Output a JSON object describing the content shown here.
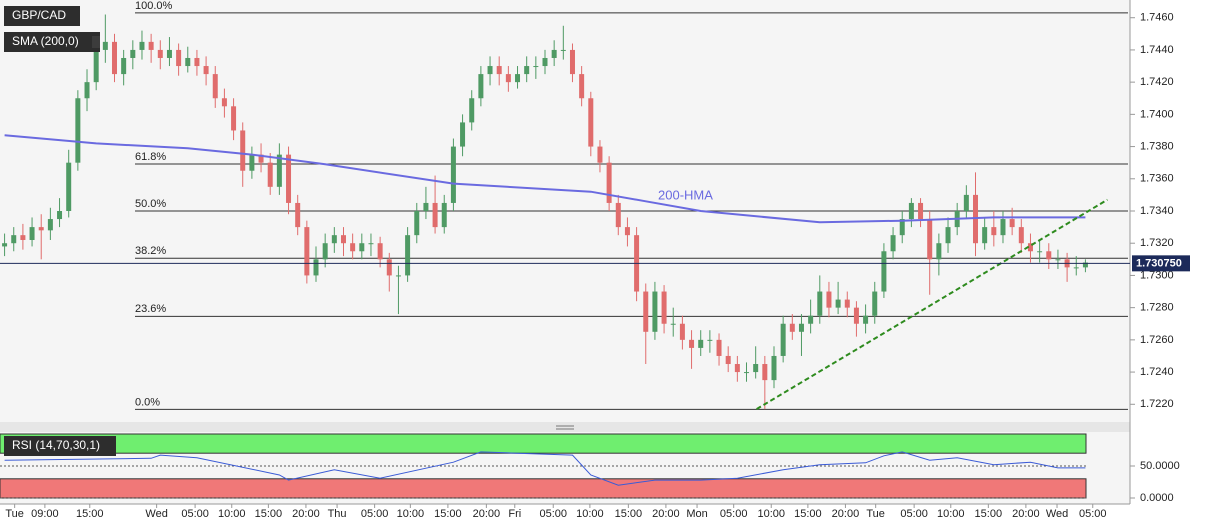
{
  "chart_data": {
    "type": "candlestick",
    "symbol": "GBP/CAD",
    "indicator_label": "SMA (200,0)",
    "annotation": "200-HMA",
    "up_color": "#4f9a64",
    "down_color": "#e06c6c",
    "xlim": [
      -0.5,
      118.5
    ],
    "ylim": [
      1.7209,
      1.7471
    ],
    "yticks": [
      {
        "value": 1.722,
        "label": "1.7220"
      },
      {
        "value": 1.724,
        "label": "1.7240"
      },
      {
        "value": 1.726,
        "label": "1.7260"
      },
      {
        "value": 1.728,
        "label": "1.7280"
      },
      {
        "value": 1.73,
        "label": "1.7300"
      },
      {
        "value": 1.732,
        "label": "1.7320"
      },
      {
        "value": 1.734,
        "label": "1.7340"
      },
      {
        "value": 1.736,
        "label": "1.7360"
      },
      {
        "value": 1.738,
        "label": "1.7380"
      },
      {
        "value": 1.74,
        "label": "1.7400"
      },
      {
        "value": 1.742,
        "label": "1.7420"
      },
      {
        "value": 1.744,
        "label": "1.7440"
      },
      {
        "value": 1.746,
        "label": "1.7460"
      }
    ],
    "xticks": [
      {
        "value": 1.1,
        "label": "Tue"
      },
      {
        "value": 4.4,
        "label": "09:00"
      },
      {
        "value": 9.3,
        "label": "15:00"
      },
      {
        "value": 16.6,
        "label": "Wed"
      },
      {
        "value": 20.8,
        "label": "05:00"
      },
      {
        "value": 24.8,
        "label": "10:00"
      },
      {
        "value": 28.8,
        "label": "15:00"
      },
      {
        "value": 32.9,
        "label": "20:00"
      },
      {
        "value": 36.3,
        "label": "Thu"
      },
      {
        "value": 40.4,
        "label": "05:00"
      },
      {
        "value": 44.3,
        "label": "10:00"
      },
      {
        "value": 48.4,
        "label": "15:00"
      },
      {
        "value": 52.6,
        "label": "20:00"
      },
      {
        "value": 55.7,
        "label": "Fri"
      },
      {
        "value": 59.9,
        "label": "05:00"
      },
      {
        "value": 63.9,
        "label": "10:00"
      },
      {
        "value": 68.1,
        "label": "15:00"
      },
      {
        "value": 72.2,
        "label": "20:00"
      },
      {
        "value": 75.6,
        "label": "Mon"
      },
      {
        "value": 79.6,
        "label": "05:00"
      },
      {
        "value": 83.7,
        "label": "10:00"
      },
      {
        "value": 87.7,
        "label": "15:00"
      },
      {
        "value": 91.8,
        "label": "20:00"
      },
      {
        "value": 95.1,
        "label": "Tue"
      },
      {
        "value": 99.3,
        "label": "05:00"
      },
      {
        "value": 103.3,
        "label": "10:00"
      },
      {
        "value": 107.4,
        "label": "15:00"
      },
      {
        "value": 111.5,
        "label": "20:00"
      },
      {
        "value": 114.9,
        "label": "Wed"
      },
      {
        "value": 118.8,
        "label": "05:00"
      }
    ],
    "candles": [
      [
        1.7318,
        1.7326,
        1.7312,
        1.732
      ],
      [
        1.732,
        1.733,
        1.7315,
        1.7325
      ],
      [
        1.7325,
        1.7332,
        1.7316,
        1.7322
      ],
      [
        1.7322,
        1.7336,
        1.7318,
        1.733
      ],
      [
        1.733,
        1.7338,
        1.731,
        1.7328
      ],
      [
        1.7328,
        1.7342,
        1.7322,
        1.7335
      ],
      [
        1.7335,
        1.7348,
        1.733,
        1.734
      ],
      [
        1.734,
        1.7378,
        1.7336,
        1.737
      ],
      [
        1.737,
        1.7415,
        1.7365,
        1.741
      ],
      [
        1.741,
        1.7428,
        1.7402,
        1.742
      ],
      [
        1.742,
        1.745,
        1.7415,
        1.744
      ],
      [
        1.744,
        1.7462,
        1.7432,
        1.7445
      ],
      [
        1.7445,
        1.745,
        1.742,
        1.7425
      ],
      [
        1.7425,
        1.744,
        1.7418,
        1.7435
      ],
      [
        1.7435,
        1.7446,
        1.7428,
        1.744
      ],
      [
        1.744,
        1.7452,
        1.7434,
        1.7445
      ],
      [
        1.7445,
        1.745,
        1.7432,
        1.744
      ],
      [
        1.744,
        1.7446,
        1.7428,
        1.7435
      ],
      [
        1.7435,
        1.7448,
        1.743,
        1.744
      ],
      [
        1.744,
        1.7444,
        1.7424,
        1.743
      ],
      [
        1.743,
        1.7442,
        1.7426,
        1.7435
      ],
      [
        1.7435,
        1.744,
        1.7424,
        1.743
      ],
      [
        1.743,
        1.7436,
        1.7418,
        1.7425
      ],
      [
        1.7425,
        1.743,
        1.7404,
        1.741
      ],
      [
        1.741,
        1.7416,
        1.7398,
        1.7405
      ],
      [
        1.7405,
        1.741,
        1.7384,
        1.739
      ],
      [
        1.739,
        1.7395,
        1.7355,
        1.7365
      ],
      [
        1.7365,
        1.738,
        1.736,
        1.7375
      ],
      [
        1.7375,
        1.7382,
        1.7364,
        1.737
      ],
      [
        1.737,
        1.7376,
        1.735,
        1.7355
      ],
      [
        1.7355,
        1.7382,
        1.735,
        1.7375
      ],
      [
        1.7375,
        1.738,
        1.7338,
        1.7345
      ],
      [
        1.7345,
        1.735,
        1.7325,
        1.733
      ],
      [
        1.733,
        1.7334,
        1.7295,
        1.73
      ],
      [
        1.73,
        1.7318,
        1.7296,
        1.731
      ],
      [
        1.731,
        1.7326,
        1.7305,
        1.732
      ],
      [
        1.732,
        1.733,
        1.7314,
        1.7325
      ],
      [
        1.7325,
        1.733,
        1.7312,
        1.732
      ],
      [
        1.732,
        1.7326,
        1.731,
        1.7315
      ],
      [
        1.7315,
        1.7326,
        1.731,
        1.732
      ],
      [
        1.732,
        1.7326,
        1.7312,
        1.732
      ],
      [
        1.732,
        1.7324,
        1.7305,
        1.731
      ],
      [
        1.731,
        1.7314,
        1.729,
        1.73
      ],
      [
        1.73,
        1.7306,
        1.7276,
        1.73
      ],
      [
        1.73,
        1.733,
        1.7296,
        1.7325
      ],
      [
        1.7325,
        1.7345,
        1.732,
        1.734
      ],
      [
        1.734,
        1.7355,
        1.7335,
        1.7345
      ],
      [
        1.7345,
        1.7362,
        1.7326,
        1.733
      ],
      [
        1.733,
        1.735,
        1.7326,
        1.7345
      ],
      [
        1.7345,
        1.7385,
        1.734,
        1.738
      ],
      [
        1.738,
        1.74,
        1.7374,
        1.7395
      ],
      [
        1.7395,
        1.7415,
        1.739,
        1.741
      ],
      [
        1.741,
        1.743,
        1.7405,
        1.7425
      ],
      [
        1.7425,
        1.7436,
        1.7418,
        1.743
      ],
      [
        1.743,
        1.7436,
        1.7418,
        1.7425
      ],
      [
        1.7425,
        1.743,
        1.7414,
        1.742
      ],
      [
        1.742,
        1.743,
        1.7416,
        1.7425
      ],
      [
        1.7425,
        1.7436,
        1.742,
        1.743
      ],
      [
        1.743,
        1.7436,
        1.7422,
        1.743
      ],
      [
        1.743,
        1.744,
        1.7425,
        1.7435
      ],
      [
        1.7435,
        1.7446,
        1.743,
        1.744
      ],
      [
        1.744,
        1.7455,
        1.7434,
        1.744
      ],
      [
        1.744,
        1.7444,
        1.742,
        1.7425
      ],
      [
        1.7425,
        1.743,
        1.7405,
        1.741
      ],
      [
        1.741,
        1.7414,
        1.7374,
        1.738
      ],
      [
        1.738,
        1.7384,
        1.7364,
        1.737
      ],
      [
        1.737,
        1.7374,
        1.734,
        1.7345
      ],
      [
        1.7345,
        1.735,
        1.7325,
        1.733
      ],
      [
        1.733,
        1.7336,
        1.7318,
        1.7325
      ],
      [
        1.7325,
        1.733,
        1.7284,
        1.729
      ],
      [
        1.729,
        1.7295,
        1.7245,
        1.7265
      ],
      [
        1.7265,
        1.7296,
        1.726,
        1.729
      ],
      [
        1.729,
        1.7294,
        1.7264,
        1.727
      ],
      [
        1.727,
        1.728,
        1.7262,
        1.727
      ],
      [
        1.727,
        1.7275,
        1.7254,
        1.726
      ],
      [
        1.726,
        1.7266,
        1.7242,
        1.7255
      ],
      [
        1.7255,
        1.7266,
        1.725,
        1.726
      ],
      [
        1.726,
        1.7266,
        1.7252,
        1.726
      ],
      [
        1.726,
        1.7264,
        1.7244,
        1.725
      ],
      [
        1.725,
        1.7256,
        1.724,
        1.7245
      ],
      [
        1.7245,
        1.725,
        1.7234,
        1.724
      ],
      [
        1.724,
        1.7246,
        1.7234,
        1.724
      ],
      [
        1.724,
        1.7256,
        1.7236,
        1.7245
      ],
      [
        1.7245,
        1.725,
        1.7217,
        1.7235
      ],
      [
        1.7235,
        1.7256,
        1.723,
        1.725
      ],
      [
        1.725,
        1.7275,
        1.7246,
        1.727
      ],
      [
        1.727,
        1.7276,
        1.726,
        1.7265
      ],
      [
        1.7265,
        1.7276,
        1.725,
        1.727
      ],
      [
        1.727,
        1.7285,
        1.7264,
        1.7275
      ],
      [
        1.7275,
        1.73,
        1.727,
        1.729
      ],
      [
        1.729,
        1.7296,
        1.7274,
        1.728
      ],
      [
        1.728,
        1.7296,
        1.7276,
        1.7285
      ],
      [
        1.7285,
        1.729,
        1.7274,
        1.728
      ],
      [
        1.728,
        1.7284,
        1.7262,
        1.727
      ],
      [
        1.727,
        1.7282,
        1.7264,
        1.7275
      ],
      [
        1.7275,
        1.7296,
        1.727,
        1.729
      ],
      [
        1.729,
        1.732,
        1.7286,
        1.7315
      ],
      [
        1.7315,
        1.733,
        1.731,
        1.7325
      ],
      [
        1.7325,
        1.734,
        1.732,
        1.7335
      ],
      [
        1.7335,
        1.7348,
        1.733,
        1.7345
      ],
      [
        1.7345,
        1.7348,
        1.733,
        1.7335
      ],
      [
        1.7335,
        1.734,
        1.7288,
        1.731
      ],
      [
        1.731,
        1.7326,
        1.73,
        1.732
      ],
      [
        1.732,
        1.7336,
        1.7314,
        1.733
      ],
      [
        1.733,
        1.7345,
        1.7325,
        1.734
      ],
      [
        1.734,
        1.7356,
        1.7335,
        1.735
      ],
      [
        1.735,
        1.7364,
        1.7312,
        1.732
      ],
      [
        1.732,
        1.7336,
        1.7316,
        1.733
      ],
      [
        1.733,
        1.734,
        1.7318,
        1.7325
      ],
      [
        1.7325,
        1.734,
        1.732,
        1.7335
      ],
      [
        1.7335,
        1.7342,
        1.7325,
        1.733
      ],
      [
        1.733,
        1.7335,
        1.7314,
        1.732
      ],
      [
        1.732,
        1.7326,
        1.7308,
        1.7315
      ],
      [
        1.7315,
        1.7322,
        1.7308,
        1.7315
      ],
      [
        1.7315,
        1.732,
        1.7304,
        1.731
      ],
      [
        1.731,
        1.7316,
        1.7304,
        1.731
      ],
      [
        1.731,
        1.7314,
        1.7296,
        1.7305
      ],
      [
        1.7305,
        1.7312,
        1.73,
        1.7305
      ],
      [
        1.7305,
        1.731,
        1.7302,
        1.7308
      ]
    ],
    "hma": {
      "color": "#6a6ae0",
      "x": [
        0,
        10,
        20,
        27,
        35,
        49,
        64,
        70,
        76,
        89,
        98,
        108,
        118
      ],
      "values": [
        1.7387,
        1.7382,
        1.7379,
        1.7375,
        1.7369,
        1.7357,
        1.7352,
        1.7346,
        1.734,
        1.7333,
        1.7334,
        1.7336,
        1.7336
      ]
    },
    "fib": [
      {
        "label": "100.0%",
        "value": 1.7463
      },
      {
        "label": "61.8%",
        "value": 1.73692
      },
      {
        "label": "50.0%",
        "value": 1.734
      },
      {
        "label": "38.2%",
        "value": 1.73107
      },
      {
        "label": "23.6%",
        "value": 1.72746
      },
      {
        "label": "0.0%",
        "value": 1.72168
      }
    ],
    "trendline": {
      "color": "#2e8b1e",
      "x": [
        82.1,
        120.4
      ],
      "values": [
        1.7217,
        1.7347
      ]
    },
    "last_price": {
      "value": 1.73075,
      "label": "1.730750"
    },
    "rsi": {
      "title": "RSI (14,70,30,1)",
      "color": "#3b5bd6",
      "ylim": [
        0,
        100
      ],
      "overbought": 70,
      "oversold": 30,
      "yticks": [
        {
          "value": 50,
          "label": "50.0000"
        },
        {
          "value": 0,
          "label": "0.0000"
        }
      ],
      "x": [
        0,
        16,
        17,
        21,
        30,
        31,
        36,
        41,
        49,
        52,
        56,
        62,
        64,
        67,
        71,
        76,
        80,
        85,
        89,
        94,
        96,
        98,
        101,
        104,
        108,
        112,
        115,
        118
      ],
      "values": [
        59,
        62,
        67,
        63,
        36,
        28,
        44,
        31,
        56,
        72,
        70,
        67,
        36,
        20,
        28,
        28,
        31,
        44,
        52,
        55,
        66,
        72,
        59,
        63,
        52,
        56,
        47,
        47
      ]
    }
  }
}
